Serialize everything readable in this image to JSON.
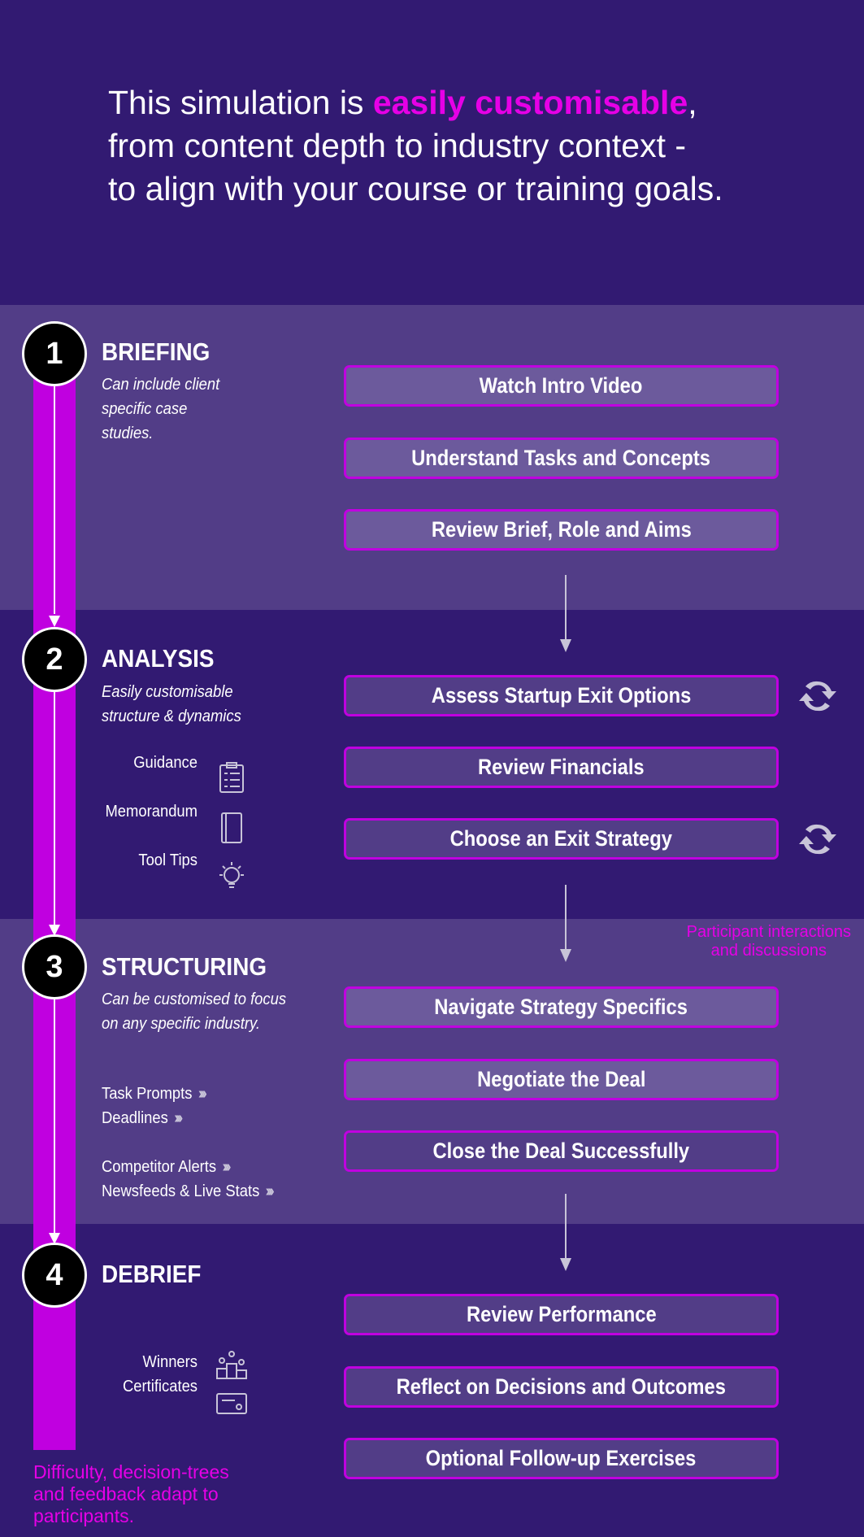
{
  "header": {
    "line1_pre": "This simulation is ",
    "line1_highlight": "easily customisable",
    "line1_post": ",",
    "line2": "from content depth to industry context -",
    "line3": "to align with your course or training goals."
  },
  "colors": {
    "accent": "#e600e6",
    "timeline": "#c000e0",
    "band_light": "#523d87",
    "band_dark": "#321a72"
  },
  "stages": [
    {
      "number": "1",
      "title": "BRIEFING",
      "subtitle": [
        "Can include client",
        "specific case",
        "studies."
      ],
      "steps": [
        "Watch Intro Video",
        "Understand Tasks and Concepts",
        "Review Brief, Role and Aims"
      ]
    },
    {
      "number": "2",
      "title": "ANALYSIS",
      "subtitle": [
        "Easily customisable",
        "structure & dynamics"
      ],
      "steps": [
        "Assess Startup Exit Options",
        "Review Financials",
        "Choose an Exit Strategy"
      ],
      "features": [
        {
          "label": "Guidance",
          "icon": "clipboard-checklist-icon"
        },
        {
          "label": "Memorandum",
          "icon": "notebook-icon"
        },
        {
          "label": "Tool Tips",
          "icon": "lightbulb-icon"
        }
      ]
    },
    {
      "number": "3",
      "title": "STRUCTURING",
      "subtitle": [
        "Can be customised to focus",
        "on any specific industry."
      ],
      "steps": [
        "Navigate Strategy Specifics",
        "Negotiate the Deal",
        "Close the Deal Successfully"
      ],
      "features": [
        "Task Prompts",
        "Deadlines",
        "Competitor Alerts",
        "Newsfeeds & Live Stats"
      ]
    },
    {
      "number": "4",
      "title": "DEBRIEF",
      "steps": [
        "Review Performance",
        "Reflect on Decisions and Outcomes",
        "Optional Follow-up Exercises"
      ],
      "features": [
        {
          "label": "Winners",
          "icon": "podium-icon"
        },
        {
          "label": "Certificates",
          "icon": "certificate-icon"
        }
      ]
    }
  ],
  "annotations": {
    "interactions": [
      "Participant interactions",
      "and discussions"
    ],
    "adapt": [
      "Difficulty, decision-trees",
      "and feedback adapt to",
      "participants."
    ]
  }
}
